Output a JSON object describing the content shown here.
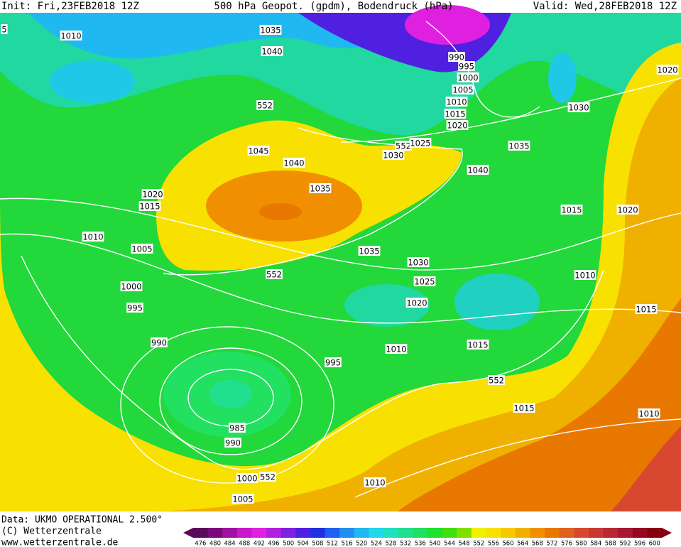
{
  "header": {
    "init": "Init: Fri,23FEB2018 12Z",
    "title": "500 hPa Geopot. (gpdm), Bodendruck (hPa)",
    "valid": "Valid: Wed,28FEB2018 12Z"
  },
  "footer": {
    "data": "Data: UKMO OPERATIONAL 2.500°",
    "copyright": "(C) Wetterzentrale",
    "url": "www.wetterzentrale.de"
  },
  "colorbar": {
    "ticks": [
      476,
      480,
      484,
      488,
      492,
      496,
      500,
      504,
      508,
      512,
      516,
      520,
      524,
      528,
      532,
      536,
      540,
      544,
      548,
      552,
      556,
      560,
      564,
      568,
      572,
      576,
      580,
      584,
      588,
      592,
      596,
      600
    ],
    "colors": [
      "#5a0a5a",
      "#7a0a7a",
      "#a010a0",
      "#c818c8",
      "#e020e0",
      "#b020e0",
      "#8020e0",
      "#5020e0",
      "#2030e0",
      "#2060f0",
      "#2090f0",
      "#20b8f0",
      "#20d8e8",
      "#20e0c0",
      "#20e090",
      "#20e060",
      "#20e030",
      "#40e010",
      "#80e000",
      "#f0f000",
      "#f8e000",
      "#f8c800",
      "#f0b000",
      "#f09000",
      "#e87800",
      "#e06020",
      "#d84830",
      "#c83830",
      "#b82830",
      "#a81830",
      "#980820",
      "#880010"
    ]
  },
  "contour_labels": [
    "1010",
    "1035",
    "1040",
    "552",
    "1045",
    "1040",
    "1035",
    "1030",
    "552",
    "1025",
    "990",
    "995",
    "1000",
    "1005",
    "1010",
    "1015",
    "1020",
    "1035",
    "1040",
    "1030",
    "1020",
    "1020",
    "1015",
    "1020",
    "1015",
    "1010",
    "1005",
    "552",
    "1035",
    "1030",
    "1025",
    "1020",
    "1010",
    "1000",
    "995",
    "1015",
    "990",
    "1010",
    "1015",
    "995",
    "552",
    "1015",
    "1010",
    "985",
    "990",
    "1000",
    "552",
    "1010",
    "1005",
    "5"
  ]
}
